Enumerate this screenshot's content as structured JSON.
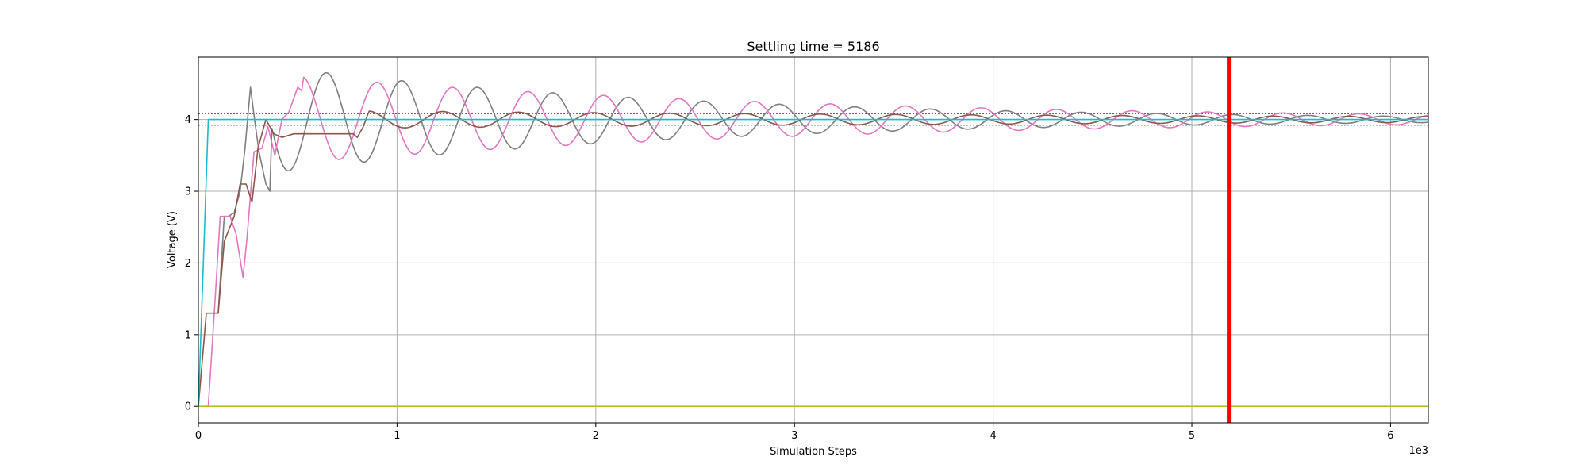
{
  "chart_data": {
    "type": "line",
    "title": "Settling time = 5186",
    "xlabel": "Simulation Steps",
    "ylabel": "Voltage (V)",
    "x_offset_label": "1e3",
    "xlim": [
      0,
      6190
    ],
    "ylim": [
      -0.23,
      4.87
    ],
    "x_ticks": [
      0,
      1000,
      2000,
      3000,
      4000,
      5000,
      6000
    ],
    "x_tick_labels": [
      "0",
      "1",
      "2",
      "3",
      "4",
      "5",
      "6"
    ],
    "y_ticks": [
      0,
      1,
      2,
      3,
      4
    ],
    "y_tick_labels": [
      "0",
      "1",
      "2",
      "3",
      "4"
    ],
    "grid": true,
    "settling_time": 5186,
    "target_voltage": 4.0,
    "tolerance_band": [
      3.92,
      4.08
    ],
    "colors": {
      "settling_marker": "#ff0000",
      "band": "#555555",
      "gray": "#7f7f7f",
      "pink": "#e377c2",
      "brown": "#8c564b",
      "teal": "#17becf",
      "olive": "#bcbd22"
    },
    "series": [
      {
        "color": "#7f7f7f",
        "kind": "oscillation",
        "start": 80,
        "points": [
          [
            80,
            1.3
          ],
          [
            100,
            1.3
          ],
          [
            130,
            2.65
          ],
          [
            150,
            2.65
          ],
          [
            180,
            2.7
          ],
          [
            210,
            3.0
          ],
          [
            235,
            3.6
          ],
          [
            262,
            4.45
          ],
          [
            285,
            3.95
          ],
          [
            305,
            3.55
          ],
          [
            340,
            3.1
          ],
          [
            360,
            3.0
          ]
        ],
        "period": 380,
        "amp0": 0.75,
        "decay": 0.00049,
        "phase_start": 360,
        "phase": 3.1416
      },
      {
        "color": "#e377c2",
        "kind": "oscillation",
        "start": 40,
        "points": [
          [
            40,
            0
          ],
          [
            50,
            0
          ],
          [
            80,
            1.3
          ],
          [
            110,
            2.65
          ],
          [
            160,
            2.65
          ],
          [
            190,
            2.4
          ],
          [
            225,
            1.8
          ],
          [
            245,
            2.35
          ],
          [
            280,
            3.55
          ],
          [
            320,
            3.6
          ],
          [
            350,
            3.9
          ],
          [
            385,
            3.5
          ],
          [
            420,
            4.0
          ],
          [
            455,
            4.1
          ],
          [
            500,
            4.45
          ],
          [
            520,
            4.4
          ]
        ],
        "period": 380,
        "amp0": 0.6,
        "decay": 0.00038,
        "phase_start": 520,
        "phase": 1.5708
      },
      {
        "color": "#8c564b",
        "kind": "oscillation",
        "start": 0,
        "points": [
          [
            0,
            0
          ],
          [
            40,
            1.3
          ],
          [
            100,
            1.3
          ],
          [
            130,
            2.3
          ],
          [
            180,
            2.65
          ],
          [
            210,
            3.1
          ],
          [
            240,
            3.1
          ],
          [
            270,
            2.85
          ],
          [
            300,
            3.6
          ],
          [
            340,
            4.0
          ],
          [
            380,
            3.8
          ],
          [
            420,
            3.75
          ],
          [
            480,
            3.8
          ],
          [
            560,
            3.8
          ],
          [
            620,
            3.8
          ],
          [
            700,
            3.8
          ],
          [
            780,
            3.8
          ],
          [
            800,
            3.75
          ],
          [
            830,
            3.9
          ],
          [
            850,
            4.05
          ]
        ],
        "period": 380,
        "amp0": 0.12,
        "decay": 0.0002,
        "phase_start": 850,
        "phase": 1.5708
      },
      {
        "color": "#17becf",
        "kind": "step",
        "points": [
          [
            0,
            0
          ],
          [
            50,
            4.0
          ],
          [
            6190,
            4.0
          ]
        ]
      },
      {
        "color": "#bcbd22",
        "kind": "flat",
        "points": [
          [
            0,
            0
          ],
          [
            6190,
            0
          ]
        ]
      }
    ]
  }
}
